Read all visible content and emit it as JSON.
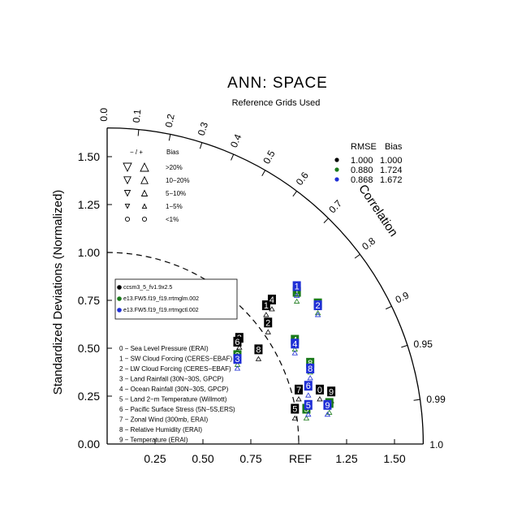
{
  "chart_data": {
    "type": "scatter",
    "title": "ANN: SPACE",
    "subtitle": "Reference Grids Used",
    "ylabel": "Standardized Deviations (Normalized)",
    "correlation_label": "Correlation",
    "ref_label": "REF",
    "axis_max": 1.65,
    "x_ticks": [
      "0.25",
      "0.50",
      "0.75",
      "1.25",
      "1.50"
    ],
    "x_tick_values": [
      0.25,
      0.5,
      0.75,
      1.25,
      1.5
    ],
    "y_ticks": [
      "0.00",
      "0.25",
      "0.50",
      "0.75",
      "1.00",
      "1.25",
      "1.50"
    ],
    "y_tick_values": [
      0,
      0.25,
      0.5,
      0.75,
      1.0,
      1.25,
      1.5
    ],
    "corr_outer": [
      {
        "label": "0.0",
        "r": 0.0
      },
      {
        "label": "0.1",
        "r": 0.1
      },
      {
        "label": "0.2",
        "r": 0.2
      },
      {
        "label": "0.3",
        "r": 0.3
      },
      {
        "label": "0.4",
        "r": 0.4
      },
      {
        "label": "0.5",
        "r": 0.5
      },
      {
        "label": "0.6",
        "r": 0.6
      },
      {
        "label": "0.7",
        "r": 0.7
      },
      {
        "label": "0.8",
        "r": 0.8
      },
      {
        "label": "0.9",
        "r": 0.9
      },
      {
        "label": "0.95",
        "r": 0.95
      },
      {
        "label": "0.99",
        "r": 0.99
      },
      {
        "label": "1.0",
        "r": 1.0
      }
    ],
    "rmse_header": "RMSE",
    "bias_header": "Bias",
    "cases": [
      {
        "color": "#000000",
        "rmse": "1.000",
        "bias": "1.000",
        "name": "ccsm3_5_fv1.9x2.5"
      },
      {
        "color": "#1a7a1a",
        "rmse": "0.880",
        "bias": "1.724",
        "name": "e13.FW5.f19_f19.rrtmglm.002"
      },
      {
        "color": "#1f2fd6",
        "rmse": "0.868",
        "bias": "1.672",
        "name": "e13.FW5.f19_f19.rrtmgctl.002"
      }
    ],
    "bias_key": {
      "header": "−  /  +",
      "header2": "Bias",
      "rows": [
        ">20%",
        "10−20%",
        "5−10%",
        "1−5%",
        "<1%"
      ]
    },
    "variables": [
      "0 − Sea Level Pressure (ERAI)",
      "1 − SW Cloud Forcing (CERES−EBAF)",
      "2 − LW Cloud Forcing (CERES−EBAF)",
      "3 − Land Rainfall (30N−30S, GPCP)",
      "4 − Ocean Rainfall (30N−30S, GPCP)",
      "5 − Land 2−m Temperature (Willmott)",
      "6 − Pacific Surface Stress (5N−5S,ERS)",
      "7 − Zonal Wind (300mb, ERAI)",
      "8 − Relative Humidity (ERAI)",
      "9 − Temperature (ERAI)"
    ],
    "points": [
      {
        "case": 0,
        "var": "0",
        "x": 1.11,
        "y": 0.28
      },
      {
        "case": 0,
        "var": "1",
        "x": 0.83,
        "y": 0.72
      },
      {
        "case": 0,
        "var": "2",
        "x": 0.84,
        "y": 0.63
      },
      {
        "case": 0,
        "var": "3",
        "x": 0.69,
        "y": 0.55
      },
      {
        "case": 0,
        "var": "4",
        "x": 0.86,
        "y": 0.75
      },
      {
        "case": 0,
        "var": "5",
        "x": 0.98,
        "y": 0.18
      },
      {
        "case": 0,
        "var": "6",
        "x": 0.68,
        "y": 0.53
      },
      {
        "case": 0,
        "var": "7",
        "x": 1.0,
        "y": 0.28
      },
      {
        "case": 0,
        "var": "8",
        "x": 0.79,
        "y": 0.49
      },
      {
        "case": 0,
        "var": "9",
        "x": 1.17,
        "y": 0.27
      },
      {
        "case": 1,
        "var": "1",
        "x": 0.99,
        "y": 0.79
      },
      {
        "case": 1,
        "var": "2",
        "x": 1.1,
        "y": 0.73
      },
      {
        "case": 1,
        "var": "3",
        "x": 0.68,
        "y": 0.46
      },
      {
        "case": 1,
        "var": "4",
        "x": 0.98,
        "y": 0.54
      },
      {
        "case": 1,
        "var": "5",
        "x": 1.04,
        "y": 0.18
      },
      {
        "case": 1,
        "var": "8",
        "x": 1.06,
        "y": 0.42
      },
      {
        "case": 1,
        "var": "9",
        "x": 1.16,
        "y": 0.21
      },
      {
        "case": 2,
        "var": "1",
        "x": 0.99,
        "y": 0.82
      },
      {
        "case": 2,
        "var": "2",
        "x": 1.1,
        "y": 0.72
      },
      {
        "case": 2,
        "var": "3",
        "x": 0.68,
        "y": 0.44
      },
      {
        "case": 2,
        "var": "4",
        "x": 0.98,
        "y": 0.52
      },
      {
        "case": 2,
        "var": "5",
        "x": 1.05,
        "y": 0.2
      },
      {
        "case": 2,
        "var": "6",
        "x": 1.05,
        "y": 0.3
      },
      {
        "case": 2,
        "var": "8",
        "x": 1.06,
        "y": 0.39
      },
      {
        "case": 2,
        "var": "9",
        "x": 1.15,
        "y": 0.2
      }
    ]
  }
}
